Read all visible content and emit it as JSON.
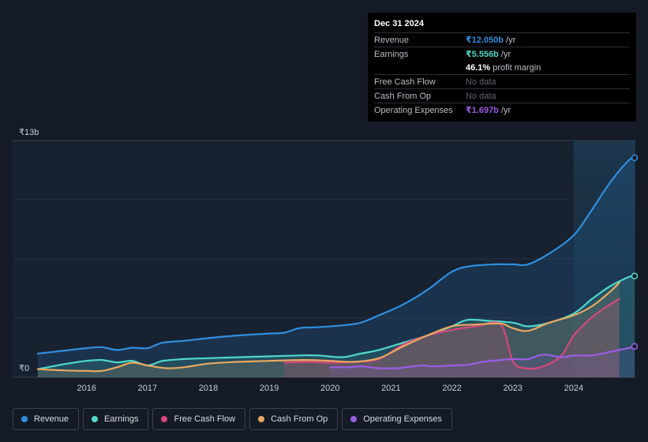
{
  "tooltip": {
    "date": "Dec 31 2024",
    "revenue_label": "Revenue",
    "revenue_value": "₹12.050b",
    "revenue_unit": "/yr",
    "earnings_label": "Earnings",
    "earnings_value": "₹5.556b",
    "earnings_unit": "/yr",
    "margin_value": "46.1%",
    "margin_label": "profit margin",
    "fcf_label": "Free Cash Flow",
    "fcf_value": "No data",
    "cfo_label": "Cash From Op",
    "cfo_value": "No data",
    "opex_label": "Operating Expenses",
    "opex_value": "₹1.697b",
    "opex_unit": "/yr"
  },
  "legend": [
    {
      "name": "revenue",
      "label": "Revenue",
      "color": "#2e8fe0"
    },
    {
      "name": "earnings",
      "label": "Earnings",
      "color": "#4fd8c8"
    },
    {
      "name": "fcf",
      "label": "Free Cash Flow",
      "color": "#d6477a"
    },
    {
      "name": "cfo",
      "label": "Cash From Op",
      "color": "#e8a860"
    },
    {
      "name": "opex",
      "label": "Operating Expenses",
      "color": "#9b5de5"
    }
  ],
  "chart_data": {
    "type": "area",
    "title": "",
    "y_top_label": "₹13b",
    "y_bottom_label": "₹0",
    "ylim": [
      0,
      13
    ],
    "xlim": [
      2015.2,
      2025.0
    ],
    "x_ticks": [
      "2016",
      "2017",
      "2018",
      "2019",
      "2020",
      "2021",
      "2022",
      "2023",
      "2024"
    ],
    "x_tick_values": [
      2016,
      2017,
      2018,
      2019,
      2020,
      2021,
      2022,
      2023,
      2024
    ],
    "highlight_start": 2024.0,
    "series": [
      {
        "name": "Revenue",
        "color": "#2e8fe0",
        "points": [
          [
            2015.2,
            1.3
          ],
          [
            2015.6,
            1.45
          ],
          [
            2016.0,
            1.6
          ],
          [
            2016.25,
            1.65
          ],
          [
            2016.5,
            1.5
          ],
          [
            2016.75,
            1.62
          ],
          [
            2017.0,
            1.6
          ],
          [
            2017.25,
            1.9
          ],
          [
            2017.6,
            2.0
          ],
          [
            2018.0,
            2.15
          ],
          [
            2018.5,
            2.3
          ],
          [
            2019.0,
            2.4
          ],
          [
            2019.25,
            2.45
          ],
          [
            2019.5,
            2.7
          ],
          [
            2019.8,
            2.75
          ],
          [
            2020.2,
            2.85
          ],
          [
            2020.5,
            3.0
          ],
          [
            2020.8,
            3.4
          ],
          [
            2021.2,
            4.0
          ],
          [
            2021.6,
            4.8
          ],
          [
            2022.0,
            5.8
          ],
          [
            2022.3,
            6.1
          ],
          [
            2022.7,
            6.2
          ],
          [
            2023.0,
            6.2
          ],
          [
            2023.25,
            6.2
          ],
          [
            2023.6,
            6.8
          ],
          [
            2024.0,
            7.8
          ],
          [
            2024.3,
            9.2
          ],
          [
            2024.6,
            10.7
          ],
          [
            2024.9,
            11.9
          ],
          [
            2025.0,
            12.05
          ]
        ]
      },
      {
        "name": "Earnings",
        "color": "#4fd8c8",
        "points": [
          [
            2015.2,
            0.45
          ],
          [
            2015.6,
            0.7
          ],
          [
            2016.0,
            0.9
          ],
          [
            2016.25,
            0.95
          ],
          [
            2016.5,
            0.82
          ],
          [
            2016.75,
            0.9
          ],
          [
            2017.0,
            0.65
          ],
          [
            2017.25,
            0.9
          ],
          [
            2017.6,
            1.0
          ],
          [
            2018.0,
            1.05
          ],
          [
            2018.5,
            1.1
          ],
          [
            2019.0,
            1.15
          ],
          [
            2019.5,
            1.2
          ],
          [
            2019.8,
            1.2
          ],
          [
            2020.2,
            1.1
          ],
          [
            2020.5,
            1.3
          ],
          [
            2020.8,
            1.5
          ],
          [
            2021.2,
            1.9
          ],
          [
            2021.6,
            2.3
          ],
          [
            2022.0,
            2.8
          ],
          [
            2022.25,
            3.15
          ],
          [
            2022.6,
            3.1
          ],
          [
            2023.0,
            3.0
          ],
          [
            2023.25,
            2.8
          ],
          [
            2023.6,
            3.0
          ],
          [
            2024.0,
            3.5
          ],
          [
            2024.3,
            4.3
          ],
          [
            2024.6,
            5.0
          ],
          [
            2024.9,
            5.5
          ],
          [
            2025.0,
            5.556
          ]
        ]
      },
      {
        "name": "Free Cash Flow",
        "color": "#d6477a",
        "points": [
          [
            2019.25,
            0.8
          ],
          [
            2019.6,
            0.85
          ],
          [
            2020.0,
            0.8
          ],
          [
            2020.4,
            0.85
          ],
          [
            2020.8,
            1.0
          ],
          [
            2021.2,
            1.8
          ],
          [
            2021.6,
            2.3
          ],
          [
            2022.0,
            2.6
          ],
          [
            2022.4,
            2.8
          ],
          [
            2022.8,
            2.9
          ],
          [
            2023.0,
            0.9
          ],
          [
            2023.2,
            0.5
          ],
          [
            2023.5,
            0.6
          ],
          [
            2023.8,
            1.2
          ],
          [
            2024.0,
            2.3
          ],
          [
            2024.3,
            3.3
          ],
          [
            2024.6,
            4.0
          ],
          [
            2024.75,
            4.3
          ]
        ]
      },
      {
        "name": "Cash From Op",
        "color": "#e8a860",
        "points": [
          [
            2015.2,
            0.45
          ],
          [
            2015.6,
            0.38
          ],
          [
            2016.0,
            0.35
          ],
          [
            2016.25,
            0.35
          ],
          [
            2016.5,
            0.55
          ],
          [
            2016.75,
            0.8
          ],
          [
            2017.0,
            0.65
          ],
          [
            2017.3,
            0.5
          ],
          [
            2017.6,
            0.55
          ],
          [
            2018.0,
            0.75
          ],
          [
            2018.5,
            0.85
          ],
          [
            2019.0,
            0.9
          ],
          [
            2019.6,
            0.95
          ],
          [
            2020.0,
            0.9
          ],
          [
            2020.4,
            0.85
          ],
          [
            2020.8,
            1.05
          ],
          [
            2021.2,
            1.7
          ],
          [
            2021.6,
            2.3
          ],
          [
            2022.0,
            2.8
          ],
          [
            2022.4,
            2.9
          ],
          [
            2022.8,
            2.95
          ],
          [
            2023.0,
            2.7
          ],
          [
            2023.25,
            2.55
          ],
          [
            2023.6,
            3.0
          ],
          [
            2024.0,
            3.4
          ],
          [
            2024.3,
            3.9
          ],
          [
            2024.6,
            4.7
          ],
          [
            2024.75,
            5.2
          ]
        ]
      },
      {
        "name": "Operating Expenses",
        "color": "#9b5de5",
        "points": [
          [
            2020.0,
            0.55
          ],
          [
            2020.3,
            0.55
          ],
          [
            2020.5,
            0.6
          ],
          [
            2020.8,
            0.5
          ],
          [
            2021.1,
            0.5
          ],
          [
            2021.5,
            0.65
          ],
          [
            2021.7,
            0.6
          ],
          [
            2022.0,
            0.65
          ],
          [
            2022.3,
            0.7
          ],
          [
            2022.5,
            0.85
          ],
          [
            2022.8,
            0.95
          ],
          [
            2023.0,
            1.0
          ],
          [
            2023.25,
            1.0
          ],
          [
            2023.5,
            1.25
          ],
          [
            2023.8,
            1.1
          ],
          [
            2024.0,
            1.2
          ],
          [
            2024.3,
            1.2
          ],
          [
            2024.6,
            1.4
          ],
          [
            2024.9,
            1.6
          ],
          [
            2025.0,
            1.697
          ]
        ]
      }
    ]
  }
}
